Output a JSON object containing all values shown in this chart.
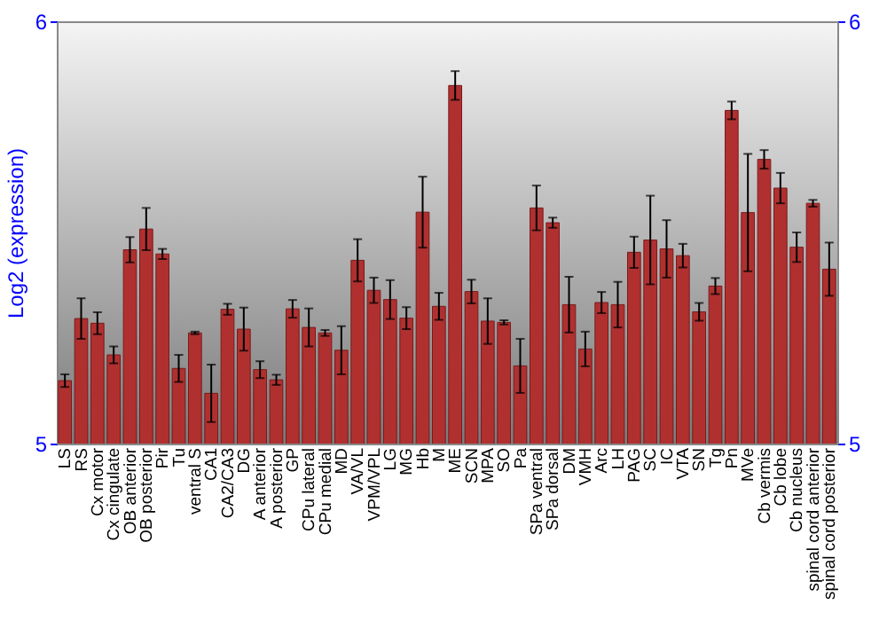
{
  "chart_data": {
    "type": "bar",
    "ylabel": "Log2 (expression)",
    "categories": [
      "LS",
      "RS",
      "Cx motor",
      "Cx cingulate",
      "OB anterior",
      "OB posterior",
      "Pir",
      "Tu",
      "ventral S",
      "CA1",
      "CA2/CA3",
      "DG",
      "A anterior",
      "A posterior",
      "GP",
      "CPu lateral",
      "CPu medial",
      "MD",
      "VA/VL",
      "VPM/VPL",
      "LG",
      "MG",
      "Hb",
      "M",
      "ME",
      "SCN",
      "MPA",
      "SO",
      "Pa",
      "SPa ventral",
      "SPa dorsal",
      "DM",
      "VMH",
      "Arc",
      "LH",
      "PAG",
      "SC",
      "IC",
      "VTA",
      "SN",
      "Tg",
      "Pn",
      "MVe",
      "Cb vermis",
      "Cb lobe",
      "Cb nucleus",
      "spinal cord anterior",
      "spinal cord posterior"
    ],
    "values": [
      5.149,
      5.296,
      5.285,
      5.21,
      5.459,
      5.508,
      5.449,
      5.178,
      5.262,
      5.119,
      5.318,
      5.271,
      5.175,
      5.151,
      5.319,
      5.275,
      5.262,
      5.221,
      5.434,
      5.363,
      5.341,
      5.297,
      5.548,
      5.325,
      5.848,
      5.36,
      5.29,
      5.287,
      5.184,
      5.558,
      5.523,
      5.329,
      5.224,
      5.334,
      5.329,
      5.453,
      5.482,
      5.461,
      5.445,
      5.312,
      5.373,
      5.789,
      5.547,
      5.673,
      5.605,
      5.465,
      5.569,
      5.413
    ],
    "errors": [
      0.015,
      0.048,
      0.026,
      0.02,
      0.03,
      0.05,
      0.012,
      0.032,
      0.003,
      0.068,
      0.013,
      0.051,
      0.02,
      0.012,
      0.021,
      0.045,
      0.007,
      0.057,
      0.05,
      0.03,
      0.046,
      0.026,
      0.084,
      0.032,
      0.034,
      0.028,
      0.054,
      0.005,
      0.064,
      0.053,
      0.012,
      0.066,
      0.041,
      0.025,
      0.054,
      0.037,
      0.105,
      0.068,
      0.028,
      0.021,
      0.019,
      0.021,
      0.139,
      0.022,
      0.036,
      0.035,
      0.008,
      0.063
    ],
    "color": "#b03030",
    "ylim": [
      5,
      6
    ],
    "yticks": [
      5,
      6
    ],
    "y2lim": [
      5,
      6
    ],
    "y2ticks": [
      5,
      6
    ],
    "grid": false
  }
}
